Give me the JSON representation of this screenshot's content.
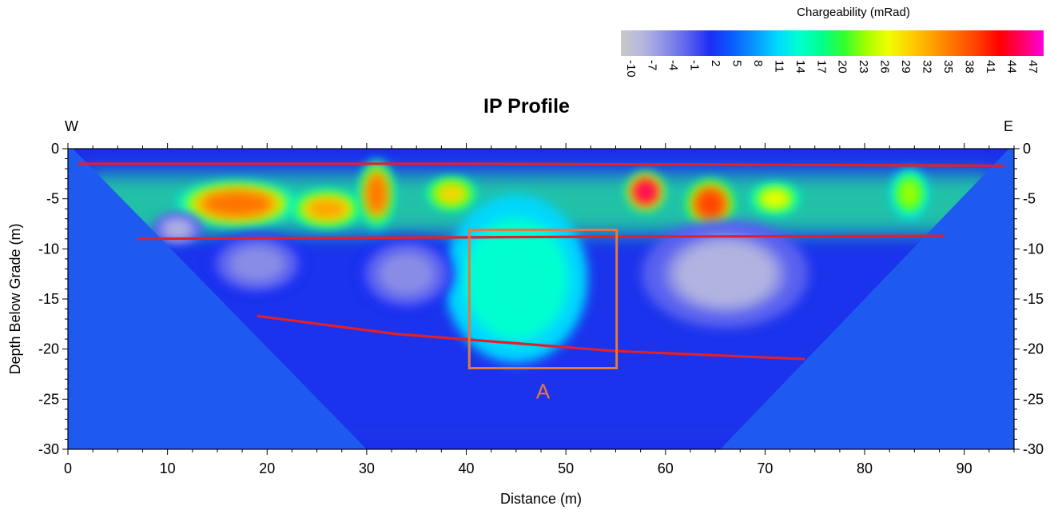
{
  "chart_data": {
    "type": "heatmap",
    "title": "IP Profile",
    "xlabel": "Distance (m)",
    "ylabel": "Depth Below Grade (m)",
    "xlim": [
      0,
      95
    ],
    "ylim": [
      -30,
      0
    ],
    "x_ticks": [
      0,
      10,
      20,
      30,
      40,
      50,
      60,
      70,
      80,
      90
    ],
    "y_ticks": [
      0,
      -5,
      -10,
      -15,
      -20,
      -25,
      -30
    ],
    "left_label": "W",
    "right_label": "E",
    "colorbar": {
      "title": "Chargeability (mRad)",
      "ticks": [
        -10,
        -7,
        -4,
        -1,
        2,
        5,
        8,
        11,
        14,
        17,
        20,
        23,
        26,
        29,
        32,
        35,
        38,
        41,
        44,
        47
      ],
      "colors": [
        "#c8c8c8",
        "#b4b6e0",
        "#8c8fe6",
        "#5a62f0",
        "#1e2ef5",
        "#0a5cff",
        "#0896ff",
        "#00d8ff",
        "#00ffd0",
        "#00ff90",
        "#30ff30",
        "#a0ff00",
        "#f0ff00",
        "#ffd000",
        "#ffa000",
        "#ff7000",
        "#ff4000",
        "#ff0000",
        "#ff0060",
        "#ff00e0"
      ]
    },
    "section_outline": [
      [
        0,
        0
      ],
      [
        95,
        0
      ],
      [
        95,
        -30
      ],
      [
        65.5,
        -30
      ],
      [
        94.5,
        0
      ],
      [
        0.5,
        0
      ],
      [
        30,
        -30
      ],
      [
        0,
        -30
      ]
    ],
    "anomalies": [
      {
        "x": 17,
        "y": -5.5,
        "rx": 5,
        "ry": 1.8,
        "value": 35
      },
      {
        "x": 26,
        "y": -6,
        "rx": 3,
        "ry": 1.5,
        "value": 32
      },
      {
        "x": 31,
        "y": -4.5,
        "rx": 1.4,
        "ry": 2.8,
        "value": 34
      },
      {
        "x": 38.5,
        "y": -4.5,
        "rx": 2,
        "ry": 1.3,
        "value": 29
      },
      {
        "x": 58,
        "y": -4.3,
        "rx": 1.6,
        "ry": 1.6,
        "value": 44
      },
      {
        "x": 64.5,
        "y": -5.5,
        "rx": 2,
        "ry": 2,
        "value": 38
      },
      {
        "x": 71,
        "y": -5,
        "rx": 2,
        "ry": 1.2,
        "value": 26
      },
      {
        "x": 84.5,
        "y": -4.5,
        "rx": 1.5,
        "ry": 2,
        "value": 22
      },
      {
        "x": 45,
        "y": -13,
        "rx": 6,
        "ry": 7,
        "value": 14
      },
      {
        "x": 11,
        "y": -8,
        "rx": 2,
        "ry": 1.2,
        "value": -7
      },
      {
        "x": 19,
        "y": -11.5,
        "rx": 4,
        "ry": 2.5,
        "value": -4
      },
      {
        "x": 34,
        "y": -12.5,
        "rx": 4,
        "ry": 3,
        "value": -4
      },
      {
        "x": 66,
        "y": -12.5,
        "rx": 7,
        "ry": 4.5,
        "value": -7
      }
    ],
    "interpretation_lines": [
      {
        "points": [
          [
            1,
            -1.5
          ],
          [
            40,
            -1.5
          ],
          [
            94,
            -1.7
          ]
        ],
        "color": "#e0202a"
      },
      {
        "points": [
          [
            7,
            -9
          ],
          [
            50,
            -8.8
          ],
          [
            88,
            -8.7
          ]
        ],
        "color": "#e0202a"
      },
      {
        "points": [
          [
            19,
            -16.7
          ],
          [
            33,
            -18.5
          ],
          [
            55,
            -20.2
          ],
          [
            74,
            -21
          ]
        ],
        "color": "#e0202a"
      }
    ],
    "target_box": {
      "x0": 40.3,
      "x1": 55.1,
      "y0": -8.1,
      "y1": -21.9,
      "color": "#e8783c",
      "label": "A"
    }
  }
}
